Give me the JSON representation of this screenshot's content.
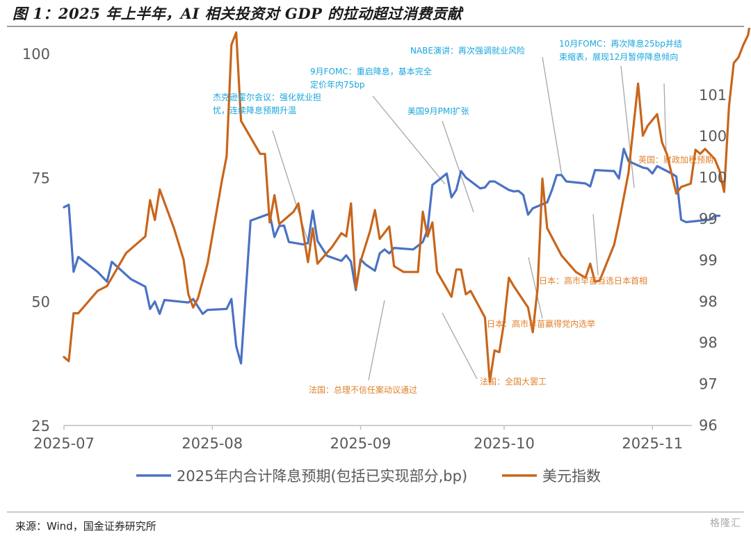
{
  "figure": {
    "title": "图 1：2025 年上半年，AI 相关投资对 GDP 的拉动超过消费贡献",
    "source": "来源：Wind，国金证券研究所",
    "watermark": "格隆汇"
  },
  "colors": {
    "rate_cut": "#4a72c4",
    "dollar": "#c8651b",
    "annotation_blue": "#19a6dd",
    "annotation_orange": "#e0802a",
    "leader": "#a6a6a6",
    "axis": "#bfbfbf"
  },
  "chart_data": {
    "type": "line",
    "grid": false,
    "legend_position": "bottom",
    "x_ticks": [
      "2025-07",
      "2025-08",
      "2025-09",
      "2025-10",
      "2025-11"
    ],
    "y_left": {
      "ticks": [
        "25",
        "50",
        "75",
        "100"
      ],
      "range": [
        25,
        100
      ]
    },
    "y_right": {
      "ticks": [
        "96",
        "97",
        "98",
        "98",
        "99",
        "99",
        "100",
        "100",
        "101"
      ]
    },
    "series": [
      {
        "name": "2025年内合计降息预期(包括已实现部分,bp)",
        "axis": "left",
        "points": [
          [
            "2025-07-01",
            69.0
          ],
          [
            "2025-07-02",
            69.5
          ],
          [
            "2025-07-03",
            56
          ],
          [
            "2025-07-04",
            59
          ],
          [
            "2025-07-08",
            56
          ],
          [
            "2025-07-10",
            54
          ],
          [
            "2025-07-11",
            58
          ],
          [
            "2025-07-15",
            54.5
          ],
          [
            "2025-07-18",
            53
          ],
          [
            "2025-07-19",
            48.5
          ],
          [
            "2025-07-20",
            50
          ],
          [
            "2025-07-21",
            47.5
          ],
          [
            "2025-07-22",
            50.3
          ],
          [
            "2025-07-25",
            50
          ],
          [
            "2025-07-27",
            49.8
          ],
          [
            "2025-07-28",
            50.5
          ],
          [
            "2025-07-29",
            49
          ],
          [
            "2025-07-30",
            47.5
          ],
          [
            "2025-07-31",
            48.3
          ],
          [
            "2025-08-04",
            48.5
          ],
          [
            "2025-08-05",
            50.5
          ],
          [
            "2025-08-06",
            41
          ],
          [
            "2025-08-07",
            37.5
          ],
          [
            "2025-08-09",
            66.3
          ],
          [
            "2025-08-13",
            67.7
          ],
          [
            "2025-08-14",
            63
          ],
          [
            "2025-08-15",
            65.2
          ],
          [
            "2025-08-16",
            65.3
          ],
          [
            "2025-08-17",
            62
          ],
          [
            "2025-08-20",
            61.5
          ],
          [
            "2025-08-21",
            61.8
          ],
          [
            "2025-08-22",
            68.3
          ],
          [
            "2025-08-23",
            62.2
          ],
          [
            "2025-08-25",
            59.2
          ],
          [
            "2025-08-28",
            58.2
          ],
          [
            "2025-08-29",
            59.3
          ],
          [
            "2025-08-30",
            58
          ],
          [
            "2025-08-31",
            52.3
          ],
          [
            "2025-09-01",
            58.5
          ],
          [
            "2025-09-02",
            57.5
          ],
          [
            "2025-09-04",
            56.2
          ],
          [
            "2025-09-05",
            59.7
          ],
          [
            "2025-09-06",
            60.5
          ],
          [
            "2025-09-07",
            59.7
          ],
          [
            "2025-09-08",
            60.8
          ],
          [
            "2025-09-12",
            60.5
          ],
          [
            "2025-09-14",
            62.0
          ],
          [
            "2025-09-15",
            64.5
          ],
          [
            "2025-09-16",
            73.5
          ],
          [
            "2025-09-18",
            75
          ],
          [
            "2025-09-19",
            75.8
          ],
          [
            "2025-09-20",
            71
          ],
          [
            "2025-09-21",
            72.5
          ],
          [
            "2025-09-22",
            76.3
          ],
          [
            "2025-09-23",
            75
          ],
          [
            "2025-09-26",
            72.8
          ],
          [
            "2025-09-27",
            73
          ],
          [
            "2025-09-28",
            74.2
          ],
          [
            "2025-09-29",
            74.2
          ],
          [
            "2025-10-02",
            72.5
          ],
          [
            "2025-10-03",
            72.2
          ],
          [
            "2025-10-04",
            72.3
          ],
          [
            "2025-10-05",
            71.5
          ],
          [
            "2025-10-06",
            67.5
          ],
          [
            "2025-10-07",
            68.8
          ],
          [
            "2025-10-10",
            70
          ],
          [
            "2025-10-11",
            72.5
          ],
          [
            "2025-10-12",
            75.5
          ],
          [
            "2025-10-13",
            75.5
          ],
          [
            "2025-10-14",
            74.2
          ],
          [
            "2025-10-18",
            73.8
          ],
          [
            "2025-10-19",
            73.2
          ],
          [
            "2025-10-20",
            76.5
          ],
          [
            "2025-10-24",
            76.3
          ],
          [
            "2025-10-25",
            74.8
          ],
          [
            "2025-10-26",
            80.8
          ],
          [
            "2025-10-27",
            78.3
          ],
          [
            "2025-10-30",
            77
          ],
          [
            "2025-10-31",
            76.8
          ],
          [
            "2025-11-01",
            75.8
          ],
          [
            "2025-11-02",
            77.3
          ],
          [
            "2025-11-05",
            75.8
          ],
          [
            "2025-11-06",
            75.2
          ],
          [
            "2025-11-07",
            66.5
          ],
          [
            "2025-11-08",
            66
          ],
          [
            "2025-11-13",
            66.5
          ],
          [
            "2025-11-14",
            67.3
          ],
          [
            "2025-11-15",
            67.3
          ]
        ]
      },
      {
        "name": "美元指数",
        "axis": "right",
        "points": [
          [
            "2025-07-01",
            96.82
          ],
          [
            "2025-07-02",
            96.77
          ],
          [
            "2025-07-03",
            97.35
          ],
          [
            "2025-07-04",
            97.35
          ],
          [
            "2025-07-08",
            97.62
          ],
          [
            "2025-07-10",
            97.68
          ],
          [
            "2025-07-11",
            97.78
          ],
          [
            "2025-07-14",
            98.08
          ],
          [
            "2025-07-18",
            98.28
          ],
          [
            "2025-07-19",
            98.72
          ],
          [
            "2025-07-20",
            98.48
          ],
          [
            "2025-07-21",
            98.85
          ],
          [
            "2025-07-24",
            98.38
          ],
          [
            "2025-07-26",
            98.0
          ],
          [
            "2025-07-27",
            97.58
          ],
          [
            "2025-07-28",
            97.42
          ],
          [
            "2025-07-29",
            97.53
          ],
          [
            "2025-07-31",
            97.95
          ],
          [
            "2025-08-03",
            98.95
          ],
          [
            "2025-08-04",
            99.25
          ],
          [
            "2025-08-05",
            100.6
          ],
          [
            "2025-08-06",
            100.75
          ],
          [
            "2025-08-07",
            99.68
          ],
          [
            "2025-08-11",
            99.28
          ],
          [
            "2025-08-12",
            99.28
          ],
          [
            "2025-08-13",
            98.45
          ],
          [
            "2025-08-14",
            98.78
          ],
          [
            "2025-08-15",
            98.43
          ],
          [
            "2025-08-18",
            98.58
          ],
          [
            "2025-08-19",
            98.68
          ],
          [
            "2025-08-21",
            97.97
          ],
          [
            "2025-08-22",
            98.38
          ],
          [
            "2025-08-23",
            97.95
          ],
          [
            "2025-08-26",
            98.15
          ],
          [
            "2025-08-28",
            98.32
          ],
          [
            "2025-08-29",
            98.28
          ],
          [
            "2025-08-30",
            98.68
          ],
          [
            "2025-08-31",
            97.65
          ],
          [
            "2025-09-01",
            97.98
          ],
          [
            "2025-09-03",
            98.35
          ],
          [
            "2025-09-04",
            98.6
          ],
          [
            "2025-09-05",
            98.25
          ],
          [
            "2025-09-07",
            98.4
          ],
          [
            "2025-09-08",
            97.92
          ],
          [
            "2025-09-10",
            97.85
          ],
          [
            "2025-09-12",
            97.85
          ],
          [
            "2025-09-13",
            97.85
          ],
          [
            "2025-09-14",
            98.58
          ],
          [
            "2025-09-15",
            98.28
          ],
          [
            "2025-09-16",
            98.45
          ],
          [
            "2025-09-17",
            97.85
          ],
          [
            "2025-09-20",
            97.55
          ],
          [
            "2025-09-21",
            97.88
          ],
          [
            "2025-09-22",
            97.88
          ],
          [
            "2025-09-23",
            97.58
          ],
          [
            "2025-09-24",
            97.62
          ],
          [
            "2025-09-27",
            97.3
          ],
          [
            "2025-09-28",
            96.52
          ],
          [
            "2025-09-29",
            96.9
          ],
          [
            "2025-09-30",
            96.88
          ],
          [
            "2025-10-01",
            97.25
          ],
          [
            "2025-10-02",
            97.78
          ],
          [
            "2025-10-03",
            97.68
          ],
          [
            "2025-10-06",
            97.42
          ],
          [
            "2025-10-07",
            97.12
          ],
          [
            "2025-10-08",
            97.65
          ],
          [
            "2025-10-09",
            98.98
          ],
          [
            "2025-10-10",
            98.38
          ],
          [
            "2025-10-13",
            98.05
          ],
          [
            "2025-10-16",
            97.85
          ],
          [
            "2025-10-18",
            97.78
          ],
          [
            "2025-10-19",
            97.95
          ],
          [
            "2025-10-20",
            97.73
          ],
          [
            "2025-10-21",
            97.75
          ],
          [
            "2025-10-24",
            98.18
          ],
          [
            "2025-10-25",
            98.45
          ],
          [
            "2025-10-27",
            99.05
          ],
          [
            "2025-10-29",
            100.13
          ],
          [
            "2025-10-30",
            99.5
          ],
          [
            "2025-10-31",
            99.62
          ],
          [
            "2025-11-02",
            99.76
          ],
          [
            "2025-11-03",
            99.42
          ],
          [
            "2025-11-04",
            99.28
          ],
          [
            "2025-11-06",
            98.8
          ],
          [
            "2025-11-07",
            98.88
          ],
          [
            "2025-11-09",
            98.92
          ],
          [
            "2025-11-10",
            99.33
          ],
          [
            "2025-11-11",
            99.28
          ],
          [
            "2025-11-12",
            99.34
          ],
          [
            "2025-11-14",
            99.22
          ],
          [
            "2025-11-15",
            99.08
          ],
          [
            "2025-11-16",
            98.82
          ],
          [
            "2025-11-17",
            99.85
          ],
          [
            "2025-11-18",
            100.38
          ],
          [
            "2025-11-19",
            100.45
          ],
          [
            "2025-11-20",
            100.6
          ],
          [
            "2025-11-21",
            100.72
          ],
          [
            "2025-11-22",
            101.08
          ],
          [
            "2025-11-23",
            100.98
          ]
        ]
      }
    ],
    "annotations": [
      {
        "text": [
          "杰克逊霍尔会议：强化就业担",
          "忧，连续降息预期升温"
        ],
        "color": "blue"
      },
      {
        "text": [
          "9月FOMC：重启降息，基本完全",
          "定价年内75bp"
        ],
        "color": "blue"
      },
      {
        "text": [
          "美国9月PMI扩张"
        ],
        "color": "blue"
      },
      {
        "text": [
          "NABE演讲：再次强调就业风险"
        ],
        "color": "blue"
      },
      {
        "text": [
          "10月FOMC：再次降息25bp并结",
          "束缩表，展现12月暂停降息倾向"
        ],
        "color": "blue"
      },
      {
        "text": [
          "英国：财政加税预期"
        ],
        "color": "orange"
      },
      {
        "text": [
          "日本：高市早苗当选日本首相"
        ],
        "color": "orange"
      },
      {
        "text": [
          "日本：高市早苗赢得党内选举"
        ],
        "color": "orange"
      },
      {
        "text": [
          "法国：全国大罢工"
        ],
        "color": "orange"
      },
      {
        "text": [
          "法国：总理不信任案动议通过"
        ],
        "color": "orange"
      }
    ]
  }
}
